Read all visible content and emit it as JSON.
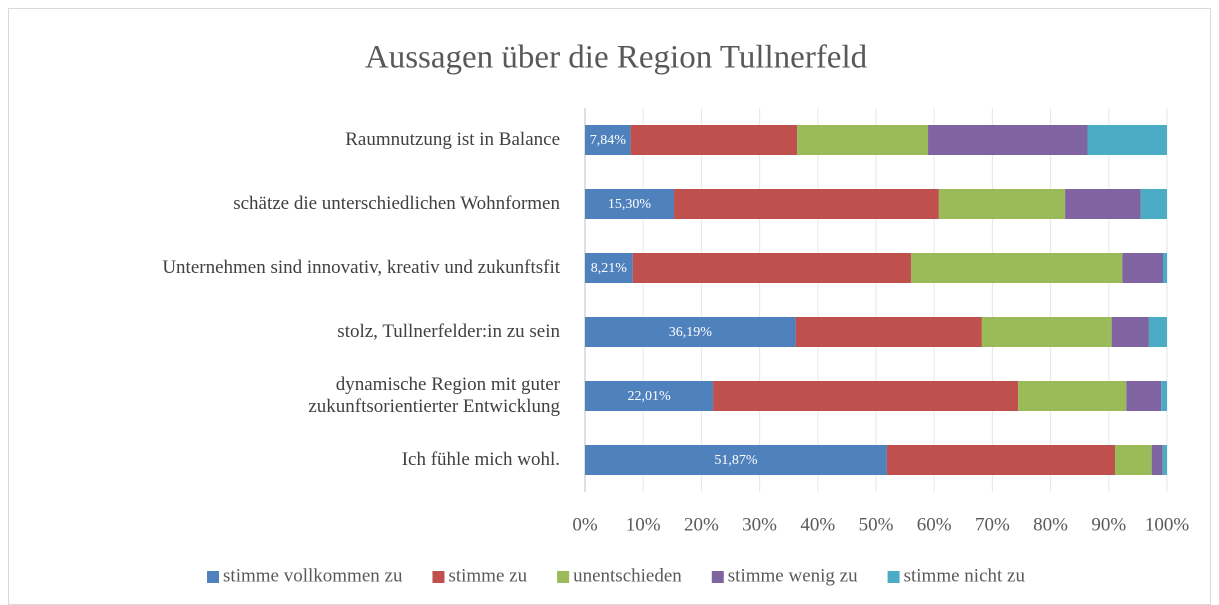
{
  "chart_data": {
    "type": "stacked-bar-horizontal",
    "title": "Aussagen über die Region Tullnerfeld",
    "categories": [
      "Raumnutzung ist in Balance",
      "schätze die unterschiedlichen Wohnformen",
      "Unternehmen sind innovativ, kreativ und zukunftsfit",
      "stolz, Tullnerfelder:in zu sein",
      "dynamische Region mit guter\nzukunftsorientierter Entwicklung",
      "Ich fühle mich wohl."
    ],
    "series": [
      {
        "name": "stimme vollkommen zu",
        "color": "#4f81bd",
        "values": [
          7.84,
          15.3,
          8.21,
          36.19,
          22.01,
          51.87
        ],
        "value_labels": [
          "7,84%",
          "15,30%",
          "8,21%",
          "36,19%",
          "22,01%",
          "51,87%"
        ]
      },
      {
        "name": "stimme zu",
        "color": "#c0504d",
        "values": [
          28.6,
          45.5,
          47.8,
          32.0,
          52.4,
          39.2
        ]
      },
      {
        "name": "unentschieden",
        "color": "#9bbb59",
        "values": [
          22.5,
          21.7,
          36.3,
          22.3,
          18.6,
          6.3
        ]
      },
      {
        "name": "stimme wenig zu",
        "color": "#8064a2",
        "values": [
          27.4,
          13.0,
          7.0,
          6.4,
          6.0,
          1.9
        ]
      },
      {
        "name": "stimme nicht zu",
        "color": "#4bacc6",
        "values": [
          13.66,
          4.5,
          0.69,
          3.11,
          0.99,
          0.73
        ]
      }
    ],
    "xlim": [
      0,
      100
    ],
    "xticks": [
      {
        "value": 0,
        "label": "0%"
      },
      {
        "value": 10,
        "label": "10%"
      },
      {
        "value": 20,
        "label": "20%"
      },
      {
        "value": 30,
        "label": "30%"
      },
      {
        "value": 40,
        "label": "40%"
      },
      {
        "value": 50,
        "label": "50%"
      },
      {
        "value": 60,
        "label": "60%"
      },
      {
        "value": 70,
        "label": "70%"
      },
      {
        "value": 80,
        "label": "80%"
      },
      {
        "value": 90,
        "label": "90%"
      },
      {
        "value": 100,
        "label": "100%"
      }
    ],
    "grid": true,
    "legend": "bottom"
  }
}
